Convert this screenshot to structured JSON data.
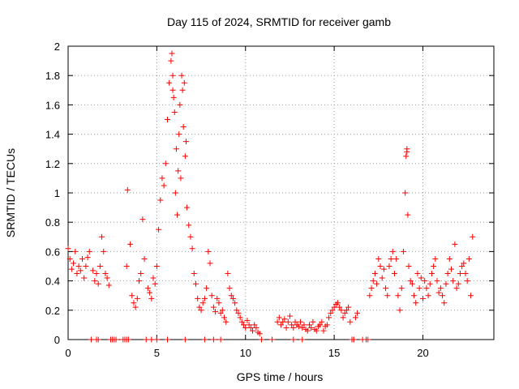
{
  "chart_data": {
    "type": "scatter",
    "title": "Day 115 of 2024, SRMTID for receiver gamb",
    "xlabel": "GPS time / hours",
    "ylabel": "SRMTID / TECUs",
    "xlim": [
      0,
      24
    ],
    "ylim": [
      0,
      2
    ],
    "xticks": [
      0,
      5,
      10,
      15,
      20
    ],
    "xtick_labels": [
      "0",
      "5",
      "10",
      "15",
      "20"
    ],
    "yticks": [
      0,
      0.2,
      0.4,
      0.6,
      0.8,
      1,
      1.2,
      1.4,
      1.6,
      1.8,
      2
    ],
    "ytick_labels": [
      "0",
      "0.2",
      "0.4",
      "0.6",
      "0.8",
      "1",
      "1.2",
      "1.4",
      "1.6",
      "1.8",
      "2"
    ],
    "grid": true,
    "marker": "plus",
    "color": "#ff0000",
    "series": [
      {
        "name": "SRMTID",
        "x": [
          0.0,
          0.1,
          0.2,
          0.3,
          0.4,
          0.5,
          0.6,
          0.7,
          0.8,
          0.9,
          1.0,
          1.1,
          1.2,
          1.3,
          1.4,
          1.5,
          1.6,
          1.7,
          1.8,
          1.9,
          2.0,
          2.1,
          2.2,
          2.3,
          2.4,
          2.5,
          2.6,
          2.7,
          3.3,
          3.4,
          3.5,
          3.6,
          3.7,
          3.8,
          3.9,
          4.0,
          4.1,
          4.2,
          4.3,
          4.4,
          4.5,
          4.6,
          4.7,
          4.8,
          4.9,
          5.0,
          5.1,
          5.2,
          5.3,
          5.4,
          5.5,
          5.6,
          5.7,
          5.8,
          5.9,
          6.0,
          6.1,
          6.2,
          6.3,
          6.4,
          6.5,
          6.6,
          6.7,
          6.8,
          6.9,
          7.0,
          7.1,
          7.2,
          7.3,
          7.4,
          7.5,
          7.6,
          7.7,
          7.8,
          7.9,
          8.0,
          8.1,
          8.2,
          8.3,
          8.4,
          8.5,
          8.6,
          8.7,
          8.8,
          8.9,
          9.0,
          9.1,
          9.2,
          9.3,
          9.4,
          9.5,
          9.6,
          9.7,
          9.8,
          9.9,
          10.0,
          10.1,
          10.2,
          10.3,
          10.4,
          10.5,
          10.6,
          10.7,
          10.8,
          11.8,
          11.9,
          12.0,
          12.1,
          12.2,
          12.3,
          12.4,
          12.5,
          12.6,
          12.7,
          12.8,
          12.9,
          13.0,
          13.1,
          13.2,
          13.3,
          13.4,
          13.5,
          13.6,
          13.7,
          13.8,
          13.9,
          14.0,
          14.1,
          14.2,
          14.3,
          14.4,
          14.5,
          14.6,
          14.7,
          14.8,
          14.9,
          15.0,
          15.1,
          15.2,
          15.3,
          15.4,
          15.5,
          15.6,
          15.7,
          15.8,
          15.9,
          16.0,
          16.1,
          16.2,
          16.3,
          16.9,
          17.0,
          17.1,
          17.2,
          17.3,
          17.4,
          17.5,
          17.6,
          17.7,
          17.8,
          17.9,
          18.0,
          18.1,
          18.2,
          18.3,
          18.4,
          18.5,
          18.6,
          18.7,
          18.8,
          18.9,
          19.0,
          19.1,
          19.2,
          19.3,
          19.4,
          19.5,
          19.6,
          19.7,
          19.8,
          19.9,
          20.0,
          20.1,
          20.2,
          20.3,
          20.4,
          20.5,
          20.6,
          20.7,
          20.8,
          20.9,
          21.0,
          21.1,
          21.2,
          21.3,
          21.4,
          21.5,
          21.6,
          21.7,
          21.8,
          21.9,
          22.0,
          22.1,
          22.2,
          22.3,
          22.4,
          22.5,
          22.6,
          22.7,
          22.8,
          5.85,
          5.9,
          5.95,
          6.05,
          6.15,
          6.25,
          6.35,
          6.45,
          6.55,
          6.65,
          19.05,
          19.1,
          19.15,
          3.35,
          1.6,
          1.7,
          3.1,
          3.2,
          3.3,
          4.7,
          5.0,
          5.6,
          6.6,
          7.7,
          8.2,
          8.6,
          10.9,
          11.5,
          12.7,
          13.2,
          16.1,
          16.6,
          16.8
        ],
        "y": [
          0.62,
          0.55,
          0.48,
          0.52,
          0.6,
          0.45,
          0.5,
          0.47,
          0.55,
          0.42,
          0.5,
          0.56,
          0.6,
          0.0,
          0.47,
          0.4,
          0.45,
          0.38,
          0.5,
          0.7,
          0.6,
          0.45,
          0.42,
          0.37,
          0.0,
          0.0,
          0.0,
          0.0,
          0.5,
          0.0,
          0.65,
          0.3,
          0.25,
          0.22,
          0.28,
          0.4,
          0.45,
          0.82,
          0.55,
          0.0,
          0.35,
          0.32,
          0.28,
          0.42,
          0.38,
          0.5,
          0.75,
          0.95,
          1.1,
          1.05,
          1.2,
          1.5,
          1.75,
          1.9,
          1.7,
          1.55,
          1.3,
          1.15,
          1.6,
          1.8,
          1.45,
          1.25,
          0.9,
          0.78,
          0.7,
          0.62,
          0.45,
          0.38,
          0.28,
          0.22,
          0.2,
          0.25,
          0.28,
          0.35,
          0.6,
          0.52,
          0.3,
          0.22,
          0.19,
          0.28,
          0.25,
          0.18,
          0.2,
          0.15,
          0.12,
          0.45,
          0.35,
          0.3,
          0.28,
          0.25,
          0.2,
          0.18,
          0.15,
          0.12,
          0.1,
          0.08,
          0.13,
          0.1,
          0.08,
          0.06,
          0.1,
          0.08,
          0.05,
          0.04,
          0.12,
          0.15,
          0.1,
          0.12,
          0.14,
          0.08,
          0.12,
          0.16,
          0.1,
          0.08,
          0.12,
          0.1,
          0.09,
          0.12,
          0.08,
          0.1,
          0.07,
          0.06,
          0.1,
          0.08,
          0.12,
          0.07,
          0.06,
          0.09,
          0.1,
          0.12,
          0.06,
          0.09,
          0.1,
          0.15,
          0.18,
          0.2,
          0.22,
          0.24,
          0.25,
          0.22,
          0.2,
          0.15,
          0.18,
          0.2,
          0.22,
          0.12,
          0.0,
          0.0,
          0.15,
          0.18,
          0.0,
          0.3,
          0.35,
          0.4,
          0.45,
          0.38,
          0.55,
          0.5,
          0.42,
          0.48,
          0.35,
          0.3,
          0.5,
          0.55,
          0.6,
          0.45,
          0.55,
          0.3,
          0.2,
          0.35,
          0.6,
          1.0,
          1.3,
          0.5,
          0.4,
          0.38,
          0.3,
          0.25,
          0.45,
          0.35,
          0.42,
          0.28,
          0.4,
          0.35,
          0.3,
          0.38,
          0.45,
          0.5,
          0.55,
          0.4,
          0.32,
          0.35,
          0.3,
          0.25,
          0.38,
          0.45,
          0.55,
          0.48,
          0.4,
          0.65,
          0.35,
          0.38,
          0.45,
          0.5,
          0.52,
          0.45,
          0.4,
          0.55,
          0.3,
          0.7,
          1.95,
          1.8,
          1.65,
          1.0,
          0.85,
          1.4,
          1.1,
          1.7,
          1.75,
          1.35,
          1.25,
          1.28,
          0.85,
          1.02,
          0.0,
          0.0,
          0.0,
          0.0,
          0.0,
          0.0,
          0.0,
          0.0,
          0.0,
          0.0,
          0.0,
          0.0,
          0.0,
          0.0,
          0.0,
          0.0,
          0.0,
          0.0,
          0.0
        ]
      }
    ]
  }
}
